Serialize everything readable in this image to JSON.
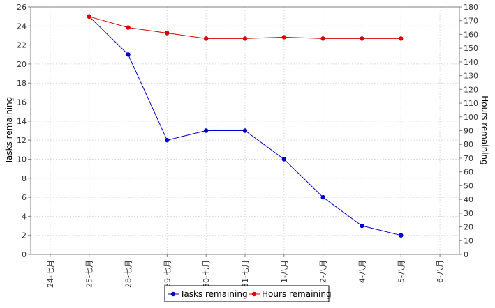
{
  "chart_data": {
    "type": "line",
    "categories": [
      "24-七月",
      "25-七月",
      "28-七月",
      "29-七月",
      "30-七月",
      "31-七月",
      "1-八月",
      "2-八月",
      "4-八月",
      "5-八月",
      "6-八月"
    ],
    "series": [
      {
        "name": "Tasks remaining",
        "axis": "left",
        "color": "#0000cc",
        "values": [
          null,
          25,
          21,
          12,
          13,
          13,
          10,
          6,
          3,
          2,
          null
        ]
      },
      {
        "name": "Hours remaining",
        "axis": "right",
        "color": "#dd0000",
        "values": [
          null,
          173,
          165,
          161,
          157,
          157,
          158,
          157,
          157,
          157,
          null
        ]
      }
    ],
    "ylabel": "Tasks remaining",
    "ylim": [
      0,
      26
    ],
    "yticks": [
      0,
      2,
      4,
      6,
      8,
      10,
      12,
      14,
      16,
      18,
      20,
      22,
      24,
      26
    ],
    "y2label": "Hours remaining",
    "y2lim": [
      0,
      180
    ],
    "y2ticks": [
      0,
      10,
      20,
      30,
      40,
      50,
      60,
      70,
      80,
      90,
      100,
      110,
      120,
      130,
      140,
      150,
      160,
      170,
      180
    ],
    "grid": true,
    "legend": "bottom-center"
  }
}
